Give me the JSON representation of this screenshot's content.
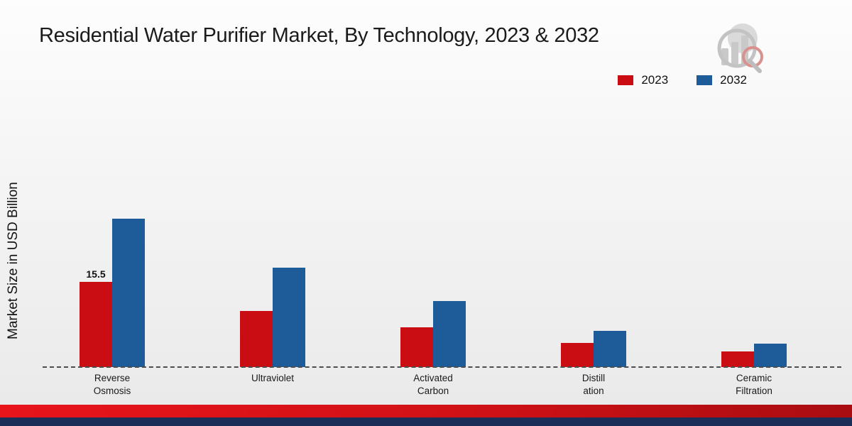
{
  "chart_data": {
    "type": "bar",
    "title": "Residential Water Purifier Market, By Technology, 2023 & 2032",
    "ylabel": "Market Size in USD Billion",
    "xlabel": "",
    "categories": [
      "Reverse\nOsmosis",
      "Ultraviolet",
      "Activated\nCarbon",
      "Distill\nation",
      "Ceramic\nFiltration"
    ],
    "series": [
      {
        "name": "2023",
        "color": "#c90d13",
        "values": [
          15.5,
          10.2,
          7.3,
          4.4,
          2.8
        ]
      },
      {
        "name": "2032",
        "color": "#1d5c99",
        "values": [
          27.0,
          18.1,
          12.0,
          6.6,
          4.3
        ]
      }
    ],
    "bar_label": {
      "series_index": 0,
      "category_index": 0,
      "text": "15.5"
    },
    "ylim": [
      0,
      30
    ],
    "legend_position": "top-right",
    "baseline_style": "dashed",
    "grid": false
  }
}
